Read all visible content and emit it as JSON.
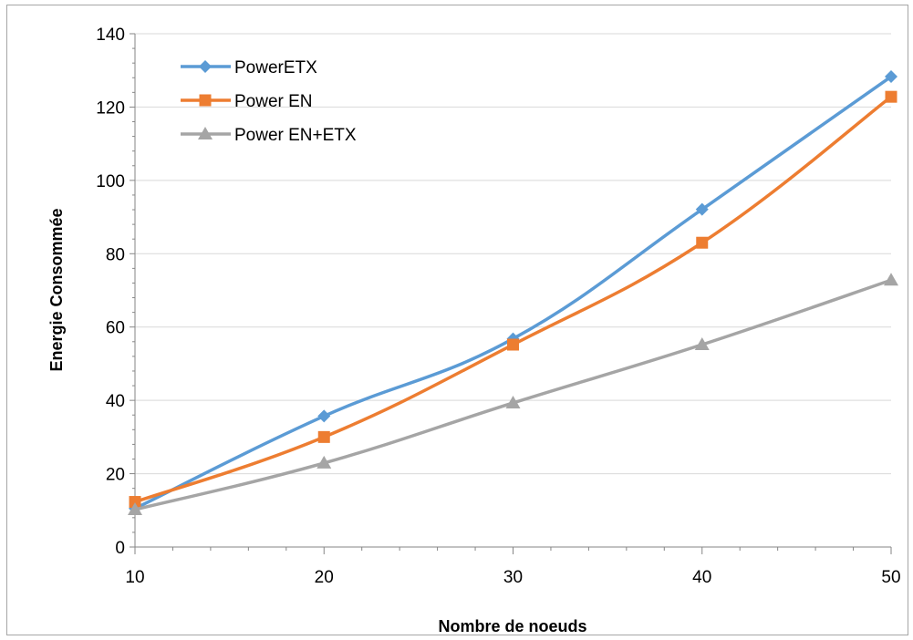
{
  "chart_data": {
    "type": "line",
    "title": "",
    "xlabel": "Nombre de noeuds",
    "ylabel": "Energie Consommée",
    "x": [
      10,
      20,
      30,
      40,
      50
    ],
    "x_ticks": [
      "10",
      "20",
      "30",
      "40",
      "50"
    ],
    "xlim": [
      10,
      50
    ],
    "ylim": [
      0,
      140
    ],
    "y_ticks": [
      "0",
      "20",
      "40",
      "60",
      "80",
      "100",
      "120",
      "140"
    ],
    "grid": "horizontal",
    "legend_position": "top-left",
    "smooth": true,
    "series": [
      {
        "name": "PowerETX",
        "values": [
          10.5,
          35.7,
          56.8,
          92.1,
          128.3
        ],
        "color": "#5b9bd5",
        "marker": "diamond"
      },
      {
        "name": "Power EN",
        "values": [
          12.3,
          30.0,
          55.2,
          83.0,
          122.8
        ],
        "color": "#ed7d31",
        "marker": "square"
      },
      {
        "name": "Power EN+ETX",
        "values": [
          10.2,
          22.9,
          39.3,
          55.2,
          72.8
        ],
        "color": "#a5a5a5",
        "marker": "triangle"
      }
    ]
  }
}
